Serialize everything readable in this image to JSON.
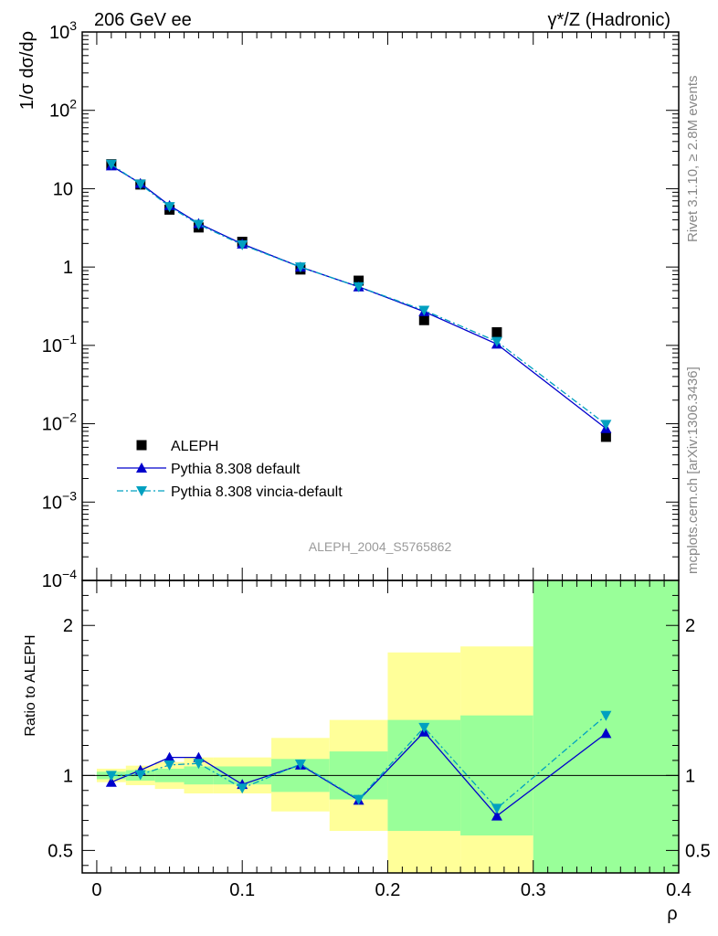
{
  "header": {
    "left": "206 GeV ee",
    "right": "γ*/Z (Hadronic)"
  },
  "side_labels": {
    "rivet": "Rivet 3.1.10, ≥ 2.8M events",
    "mcplots": "mcplots.cern.ch [arXiv:1306.3436]"
  },
  "analysis_label": "ALEPH_2004_S5765862",
  "chart_data": [
    {
      "type": "scatter",
      "panel": "main",
      "ylabel": "1/σ dσ/dρ",
      "xlim": [
        -0.01,
        0.4
      ],
      "ylim": [
        0.0001,
        1000
      ],
      "yscale": "log",
      "ytick_labels": [
        {
          "value": 1000,
          "base": "10",
          "exp": "3"
        },
        {
          "value": 100,
          "base": "10",
          "exp": "2"
        },
        {
          "value": 10,
          "base": "10",
          "exp": ""
        },
        {
          "value": 1,
          "base": "1",
          "exp": ""
        },
        {
          "value": 0.1,
          "base": "10",
          "exp": "−1"
        },
        {
          "value": 0.01,
          "base": "10",
          "exp": "−2"
        },
        {
          "value": 0.001,
          "base": "10",
          "exp": "−3"
        },
        {
          "value": 0.0001,
          "base": "10",
          "exp": "−4"
        }
      ],
      "legend_position": "lower-left",
      "series": [
        {
          "name": "ALEPH",
          "style": "data",
          "color": "#000000",
          "marker": "square",
          "x": [
            0.01,
            0.03,
            0.05,
            0.07,
            0.1,
            0.14,
            0.18,
            0.225,
            0.275,
            0.35
          ],
          "y": [
            20.5,
            11.3,
            5.4,
            3.2,
            2.1,
            0.93,
            0.67,
            0.21,
            0.147,
            0.0068
          ]
        },
        {
          "name": "Pythia 8.308 default",
          "style": "solid",
          "color": "#0000cc",
          "marker": "triangle-up",
          "x": [
            0.01,
            0.03,
            0.05,
            0.07,
            0.1,
            0.14,
            0.18,
            0.225,
            0.275,
            0.35
          ],
          "y": [
            19.6,
            11.7,
            6.1,
            3.6,
            1.97,
            1.0,
            0.56,
            0.27,
            0.104,
            0.0087
          ]
        },
        {
          "name": "Pythia 8.308 vincia-default",
          "style": "dashdot",
          "color": "#00a0c0",
          "marker": "triangle-down",
          "x": [
            0.01,
            0.03,
            0.05,
            0.07,
            0.1,
            0.14,
            0.18,
            0.225,
            0.275,
            0.35
          ],
          "y": [
            20.5,
            11.4,
            5.9,
            3.5,
            1.92,
            1.0,
            0.56,
            0.28,
            0.112,
            0.0098
          ]
        }
      ]
    },
    {
      "type": "line",
      "panel": "ratio",
      "ylabel": "Ratio to ALEPH",
      "xlabel": "ρ",
      "xlim": [
        -0.01,
        0.4
      ],
      "ylim": [
        0.35,
        2.3
      ],
      "ytick_labels": [
        "0.5",
        "1",
        "2"
      ],
      "xtick_labels": [
        "0",
        "0.1",
        "0.2",
        "0.3",
        "0.4"
      ],
      "reference_line": 1,
      "bands": [
        {
          "x0": 0.0,
          "x1": 0.02,
          "green": [
            0.975,
            1.025
          ],
          "yellow": [
            0.955,
            1.045
          ]
        },
        {
          "x0": 0.02,
          "x1": 0.04,
          "green": [
            0.965,
            1.035
          ],
          "yellow": [
            0.935,
            1.065
          ]
        },
        {
          "x0": 0.04,
          "x1": 0.06,
          "green": [
            0.955,
            1.045
          ],
          "yellow": [
            0.91,
            1.09
          ]
        },
        {
          "x0": 0.06,
          "x1": 0.08,
          "green": [
            0.94,
            1.06
          ],
          "yellow": [
            0.88,
            1.12
          ]
        },
        {
          "x0": 0.08,
          "x1": 0.12,
          "green": [
            0.94,
            1.06
          ],
          "yellow": [
            0.88,
            1.12
          ]
        },
        {
          "x0": 0.12,
          "x1": 0.16,
          "green": [
            0.89,
            1.11
          ],
          "yellow": [
            0.76,
            1.25
          ]
        },
        {
          "x0": 0.16,
          "x1": 0.2,
          "green": [
            0.84,
            1.16
          ],
          "yellow": [
            0.63,
            1.37
          ]
        },
        {
          "x0": 0.2,
          "x1": 0.25,
          "green": [
            0.63,
            1.37
          ],
          "yellow": [
            0.35,
            1.82
          ]
        },
        {
          "x0": 0.25,
          "x1": 0.3,
          "green": [
            0.6,
            1.4
          ],
          "yellow": [
            0.35,
            1.86
          ]
        },
        {
          "x0": 0.3,
          "x1": 0.4,
          "green": [
            0.35,
            2.3
          ],
          "yellow": [
            0.35,
            2.3
          ]
        }
      ],
      "series": [
        {
          "name": "Pythia 8.308 default",
          "style": "solid",
          "color": "#0000cc",
          "marker": "triangle-up",
          "x": [
            0.01,
            0.03,
            0.05,
            0.07,
            0.1,
            0.14,
            0.18,
            0.225,
            0.275,
            0.35
          ],
          "y": [
            0.955,
            1.035,
            1.12,
            1.12,
            0.94,
            1.07,
            0.835,
            1.29,
            0.73,
            1.28
          ]
        },
        {
          "name": "Pythia 8.308 vincia-default",
          "style": "dashdot",
          "color": "#00a0c0",
          "marker": "triangle-down",
          "x": [
            0.01,
            0.03,
            0.05,
            0.07,
            0.1,
            0.14,
            0.18,
            0.225,
            0.275,
            0.35
          ],
          "y": [
            1.0,
            1.005,
            1.07,
            1.08,
            0.915,
            1.075,
            0.84,
            1.32,
            0.78,
            1.4
          ]
        }
      ]
    }
  ],
  "colors": {
    "green_band": "#99ff99",
    "yellow_band": "#ffff99"
  }
}
